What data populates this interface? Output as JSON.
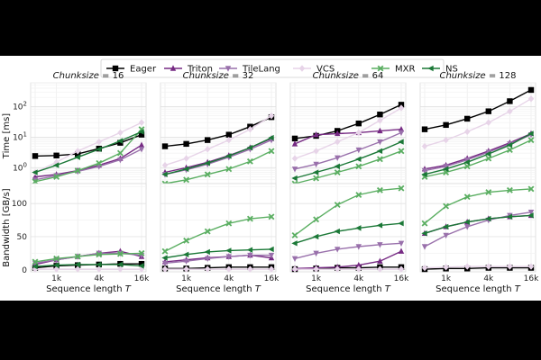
{
  "chart_data": {
    "type": "line",
    "legend": {
      "placement": "top-center",
      "entries": [
        {
          "name": "Eager",
          "color": "#000000",
          "marker": "square"
        },
        {
          "name": "Triton",
          "color": "#762a83",
          "marker": "triangle-up"
        },
        {
          "name": "TileLang",
          "color": "#9970ab",
          "marker": "triangle-down"
        },
        {
          "name": "VCS",
          "color": "#e7d4e8",
          "marker": "diamond"
        },
        {
          "name": "MXR",
          "color": "#5aae61",
          "marker": "x"
        },
        {
          "name": "NS",
          "color": "#1b7837",
          "marker": "triangle-left"
        }
      ]
    },
    "x": [
      512,
      1024,
      2048,
      4096,
      8192,
      16384
    ],
    "x_scale": "log2",
    "x_ticks": [
      {
        "value": 1024,
        "label": "1k"
      },
      {
        "value": 4096,
        "label": "4k"
      },
      {
        "value": 16384,
        "label": "16k"
      }
    ],
    "xlabel": "Sequence length ",
    "xlabel_var": "T",
    "chunk_label": "Chunksize",
    "rows": [
      {
        "ylabel": "Time [ms]",
        "yscale": "log",
        "ylim": [
          0.2,
          600
        ],
        "yticks": [
          {
            "value": 1,
            "label": "10",
            "sup": "0"
          },
          {
            "value": 10,
            "label": "10",
            "sup": "1"
          },
          {
            "value": 100,
            "label": "10",
            "sup": "2"
          }
        ]
      },
      {
        "ylabel": "Bandwidth [GB/s]",
        "yscale": "linear",
        "ylim": [
          -3,
          130
        ],
        "yticks": [
          {
            "value": 0,
            "label": "0"
          },
          {
            "value": 50,
            "label": "50"
          },
          {
            "value": 100,
            "label": "100"
          }
        ]
      }
    ],
    "panels": [
      {
        "chunksize": "16",
        "time": {
          "Eager": [
            2.4,
            2.5,
            2.8,
            4.2,
            6.5,
            12
          ],
          "Triton": [
            0.5,
            0.6,
            0.8,
            1.2,
            2.0,
            5.5
          ],
          "TileLang": [
            0.4,
            0.55,
            0.75,
            1.1,
            1.8,
            4.0
          ],
          "VCS": [
            0.7,
            1.5,
            3.5,
            7.0,
            14,
            30
          ],
          "MXR": [
            0.35,
            0.5,
            0.8,
            1.4,
            3.0,
            18
          ],
          "NS": [
            0.7,
            1.2,
            2.2,
            4.0,
            7.5,
            15
          ]
        },
        "bandwidth": {
          "Eager": [
            3,
            6,
            7,
            8,
            9,
            9
          ],
          "Triton": [
            8,
            15,
            20,
            25,
            28,
            20
          ],
          "TileLang": [
            10,
            15,
            20,
            25,
            25,
            22
          ],
          "VCS": [
            1,
            1,
            1,
            1,
            1,
            1
          ],
          "MXR": [
            12,
            17,
            20,
            23,
            24,
            25
          ],
          "NS": [
            5,
            7,
            8,
            8,
            8,
            6
          ]
        }
      },
      {
        "chunksize": "32",
        "time": {
          "Eager": [
            5.0,
            6.0,
            8.0,
            12,
            22,
            45
          ],
          "Triton": [
            0.7,
            1.0,
            1.5,
            2.5,
            4.5,
            9.0
          ],
          "TileLang": [
            0.6,
            0.85,
            1.3,
            2.2,
            4.0,
            8.0
          ],
          "VCS": [
            1.2,
            2.0,
            4.0,
            8.0,
            18,
            50
          ],
          "MXR": [
            0.3,
            0.4,
            0.6,
            0.9,
            1.6,
            3.5
          ],
          "NS": [
            0.6,
            0.9,
            1.4,
            2.4,
            4.5,
            9.5
          ]
        },
        "bandwidth": {
          "Eager": [
            2,
            2,
            3,
            4,
            4,
            4
          ],
          "Triton": [
            12,
            15,
            18,
            20,
            22,
            18
          ],
          "TileLang": [
            10,
            13,
            17,
            20,
            22,
            22
          ],
          "VCS": [
            1,
            1,
            1,
            1,
            1,
            1
          ],
          "MXR": [
            28,
            44,
            58,
            70,
            77,
            80
          ],
          "NS": [
            18,
            23,
            27,
            29,
            30,
            31
          ]
        }
      },
      {
        "chunksize": "64",
        "time": {
          "Eager": [
            9.0,
            11,
            16,
            28,
            55,
            115
          ],
          "Triton": [
            6.0,
            12,
            13,
            14,
            16,
            18
          ],
          "TileLang": [
            0.9,
            1.3,
            2.1,
            3.8,
            7.0,
            14
          ],
          "VCS": [
            2.0,
            3.5,
            7.0,
            14,
            35,
            90
          ],
          "MXR": [
            0.3,
            0.45,
            0.7,
            1.1,
            1.9,
            3.5
          ],
          "NS": [
            0.45,
            0.7,
            1.1,
            1.9,
            3.5,
            7.0
          ]
        },
        "bandwidth": {
          "Eager": [
            1,
            2,
            3,
            3,
            4,
            4
          ],
          "Triton": [
            2,
            3,
            4,
            7,
            13,
            28
          ],
          "TileLang": [
            17,
            25,
            31,
            35,
            38,
            40
          ],
          "VCS": [
            1,
            1,
            1,
            1,
            1,
            1
          ],
          "MXR": [
            52,
            76,
            98,
            113,
            120,
            123
          ],
          "NS": [
            40,
            50,
            58,
            63,
            67,
            70
          ]
        }
      },
      {
        "chunksize": "128",
        "time": {
          "Eager": [
            18,
            25,
            40,
            70,
            150,
            350
          ],
          "Triton": [
            0.9,
            1.2,
            2.0,
            3.5,
            6.5,
            13
          ],
          "TileLang": [
            0.8,
            1.1,
            1.8,
            3.2,
            6.0,
            12
          ],
          "VCS": [
            5.0,
            8.0,
            15,
            30,
            70,
            180
          ],
          "MXR": [
            0.5,
            0.7,
            1.1,
            2.0,
            3.8,
            8.0
          ],
          "NS": [
            0.6,
            0.9,
            1.5,
            2.8,
            5.5,
            13
          ]
        },
        "bandwidth": {
          "Eager": [
            1,
            2,
            2,
            3,
            3,
            3
          ],
          "Triton": [
            55,
            65,
            72,
            77,
            80,
            82
          ],
          "TileLang": [
            35,
            52,
            65,
            75,
            82,
            87
          ],
          "VCS": [
            3,
            4,
            5,
            5,
            5,
            5
          ],
          "MXR": [
            70,
            96,
            110,
            117,
            120,
            122
          ],
          "NS": [
            55,
            65,
            72,
            77,
            80,
            82
          ]
        }
      }
    ]
  }
}
